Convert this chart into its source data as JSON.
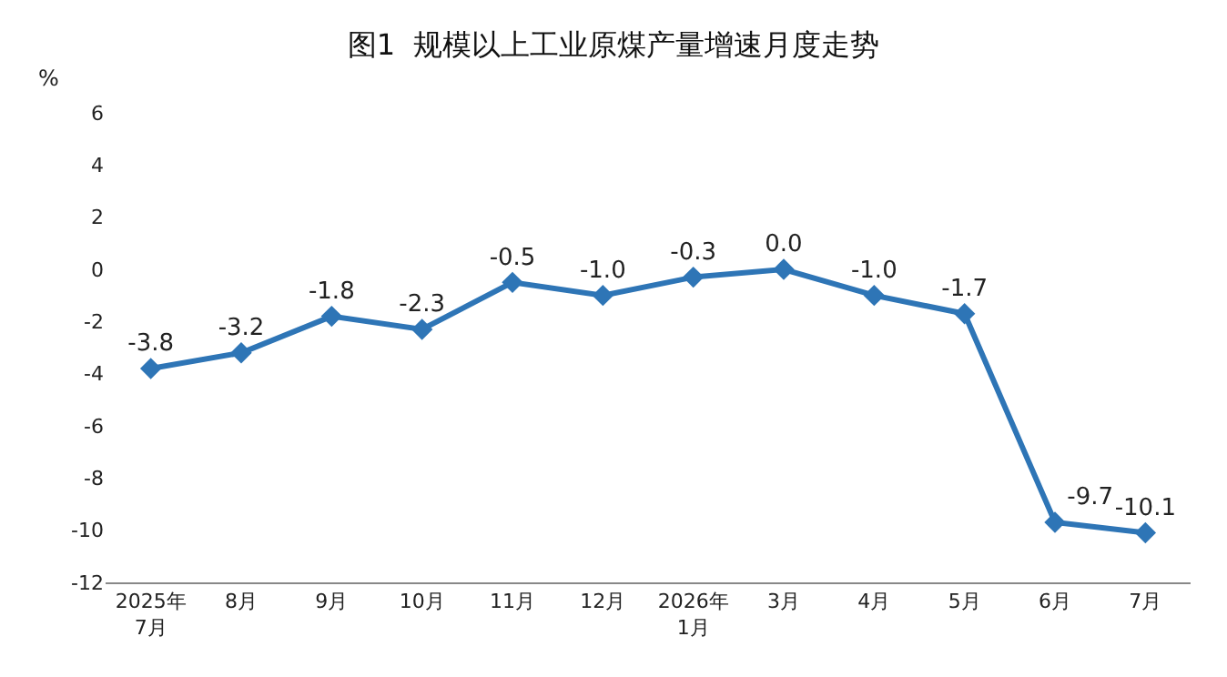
{
  "chart_data": {
    "type": "line",
    "title": "图1  规模以上工业原煤产量增速月度走势",
    "ylabel": "%",
    "categories": [
      "2025年\n7月",
      "8月",
      "9月",
      "10月",
      "11月",
      "12月",
      "2026年\n1月",
      "3月",
      "4月",
      "5月",
      "6月",
      "7月"
    ],
    "series": [
      {
        "color": "#2e75b6",
        "values": [
          -3.8,
          -3.2,
          -1.8,
          -2.3,
          -0.5,
          -1.0,
          -0.3,
          0.0,
          -1.0,
          -1.7,
          -9.7,
          -10.1
        ],
        "value_labels": [
          "-3.8",
          "-3.2",
          "-1.8",
          "-2.3",
          "-0.5",
          "-1.0",
          "-0.3",
          "0.0",
          "-1.0",
          "-1.7",
          "-9.7",
          "-10.1"
        ]
      }
    ],
    "ylim": [
      -12,
      6
    ],
    "yticks": [
      -12,
      -10,
      -8,
      -6,
      -4,
      -2,
      0,
      2,
      4,
      6
    ],
    "grid": false,
    "marker": "diamond",
    "line_style": "solid"
  }
}
